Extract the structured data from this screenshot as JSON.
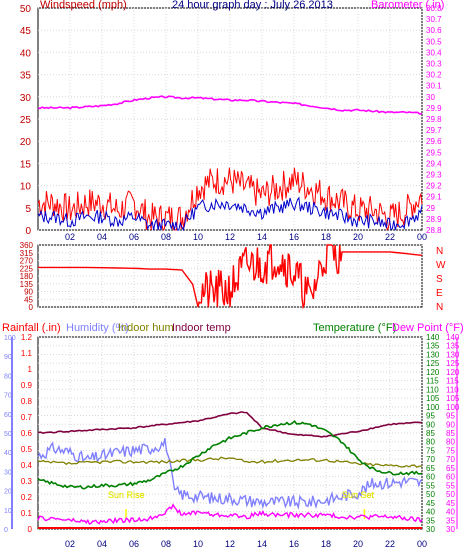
{
  "header": {
    "title": "24 hour graph day : July 26 2013",
    "wind_label": "Windspeed (mph)",
    "baro_label": "Barometer (.in)"
  },
  "bottom_header": {
    "rain_label": "Rainfall (.in)",
    "humidity_label": "Humidity (%)",
    "indoor_hum_label": "Indoor hum",
    "indoor_temp_label": "Indoor temp",
    "temp_label": "Temperature (°F)",
    "dew_label": "Dew Point (°F)"
  },
  "annotations": {
    "sunrise": "Sun Rise",
    "sunset": "Sun Set"
  },
  "colors": {
    "wind": "#ff0000",
    "wind_avg": "#0000cc",
    "baro": "#ff00ff",
    "direction": "#ff0000",
    "humidity": "#8080ff",
    "indoor_hum": "#808000",
    "indoor_temp": "#800040",
    "temperature": "#008000",
    "dewpoint": "#ff00ff",
    "rain": "#ff0000",
    "sun_text": "#ffff00"
  },
  "chart_data": [
    {
      "type": "line",
      "name": "wind-barometer",
      "title": "24 hour graph day : July 26 2013",
      "x_ticks": [
        "02",
        "04",
        "06",
        "08",
        "10",
        "12",
        "14",
        "16",
        "18",
        "20",
        "22",
        "00"
      ],
      "xlim": [
        0,
        24
      ],
      "y_left": {
        "label": "Windspeed (mph)",
        "ylim": [
          0,
          50
        ],
        "ticks": [
          0,
          5,
          10,
          15,
          20,
          25,
          30,
          35,
          40,
          45,
          50
        ]
      },
      "y_right": {
        "label": "Barometer (.in)",
        "ylim": [
          28.8,
          30.8
        ],
        "ticks": [
          "28.8",
          "28.9",
          "29",
          "29.1",
          "29.2",
          "29.3",
          "29.4",
          "29.5",
          "29.6",
          "29.7",
          "29.8",
          "29.9",
          "30",
          "30.1",
          "30.2",
          "30.3",
          "30.4",
          "30.5",
          "30.6",
          "30.7",
          "30.8"
        ]
      },
      "series": [
        {
          "name": "Windspeed (mph)",
          "x": [
            0,
            1,
            2,
            3,
            4,
            5,
            6,
            7,
            8,
            9,
            10,
            11,
            12,
            13,
            14,
            15,
            16,
            17,
            18,
            19,
            20,
            21,
            22,
            23,
            24
          ],
          "values": [
            3,
            3,
            2,
            3,
            3,
            2,
            3,
            1,
            1,
            1,
            5,
            6,
            6,
            5,
            4,
            5,
            6,
            5,
            4,
            3,
            2,
            2,
            1,
            2,
            4
          ]
        },
        {
          "name": "Barometer (.in)",
          "x": [
            0,
            1,
            2,
            3,
            4,
            5,
            6,
            7,
            8,
            9,
            10,
            11,
            12,
            13,
            14,
            15,
            16,
            17,
            18,
            19,
            20,
            21,
            22,
            23,
            24
          ],
          "values": [
            29.9,
            29.9,
            29.9,
            29.91,
            29.92,
            29.94,
            29.97,
            29.99,
            30.0,
            29.99,
            29.99,
            29.98,
            29.97,
            29.97,
            29.96,
            29.95,
            29.94,
            29.92,
            29.9,
            29.88,
            29.88,
            29.87,
            29.86,
            29.86,
            29.85
          ]
        }
      ]
    },
    {
      "type": "line",
      "name": "wind-direction",
      "x_ticks": [
        "02",
        "04",
        "06",
        "08",
        "10",
        "12",
        "14",
        "16",
        "18",
        "20",
        "22",
        "00"
      ],
      "xlim": [
        0,
        24
      ],
      "y_left": {
        "ylim": [
          0,
          360
        ],
        "ticks": [
          0,
          45,
          90,
          135,
          180,
          225,
          270,
          315,
          360
        ]
      },
      "y_right": {
        "ticks": [
          "N",
          "W",
          "S",
          "E",
          "N"
        ]
      },
      "series": [
        {
          "name": "Wind direction",
          "x": [
            0,
            3,
            6,
            7,
            8,
            9,
            10,
            11,
            12,
            13,
            14,
            15,
            16,
            17,
            18,
            19,
            20,
            21,
            22,
            23,
            24
          ],
          "values": [
            230,
            230,
            225,
            220,
            220,
            215,
            90,
            80,
            100,
            240,
            250,
            300,
            200,
            40,
            320,
            320,
            320,
            320,
            320,
            310,
            300
          ]
        }
      ]
    },
    {
      "type": "line",
      "name": "temperature-humidity-rain",
      "x_ticks": [
        "02",
        "04",
        "06",
        "08",
        "10",
        "12",
        "14",
        "16",
        "18",
        "20",
        "22",
        "00"
      ],
      "xlim": [
        0,
        24
      ],
      "y_rain": {
        "label": "Rainfall (.in)",
        "ylim": [
          0,
          1.2
        ],
        "ticks": [
          "0",
          "0.1",
          "0.2",
          "0.3",
          "0.4",
          "0.5",
          "0.6",
          "0.7",
          "0.8",
          "0.9",
          "1",
          "1.1",
          "1.2"
        ]
      },
      "y_humidity": {
        "label": "Humidity (%)",
        "ylim": [
          0,
          100
        ],
        "ticks": [
          "0",
          "10",
          "20",
          "30",
          "40",
          "50",
          "60",
          "70",
          "80",
          "90",
          "100"
        ]
      },
      "y_temp": {
        "label": "Temperature (°F)",
        "ylim": [
          30,
          140
        ],
        "ticks": [
          "30",
          "35",
          "40",
          "45",
          "50",
          "55",
          "60",
          "65",
          "70",
          "75",
          "80",
          "85",
          "90",
          "95",
          "100",
          "105",
          "110",
          "115",
          "120",
          "125",
          "130",
          "135",
          "140"
        ]
      },
      "series": [
        {
          "name": "Humidity (%)",
          "x": [
            0,
            1,
            2,
            3,
            4,
            5,
            6,
            7,
            8,
            8.5,
            9,
            10,
            11,
            12,
            13,
            14,
            15,
            16,
            17,
            18,
            19,
            20,
            21,
            22,
            23,
            24
          ],
          "values": [
            38,
            42,
            40,
            36,
            38,
            40,
            41,
            42,
            45,
            20,
            18,
            17,
            16,
            16,
            15,
            14,
            14,
            14,
            14,
            15,
            17,
            19,
            24,
            24,
            25,
            24
          ]
        },
        {
          "name": "Indoor hum",
          "x": [
            0,
            2,
            4,
            6,
            8,
            10,
            12,
            13,
            14,
            16,
            18,
            20,
            22,
            24
          ],
          "values": [
            35,
            34,
            35,
            35,
            35,
            36,
            37,
            35,
            35,
            36,
            36,
            34,
            33,
            33
          ]
        },
        {
          "name": "Indoor temp",
          "x": [
            0,
            2,
            4,
            6,
            8,
            10,
            12,
            13,
            14,
            16,
            18,
            20,
            22,
            24
          ],
          "values": [
            85,
            86,
            87,
            88,
            90,
            92,
            96,
            97,
            88,
            84,
            83,
            86,
            90,
            91
          ]
        },
        {
          "name": "Temperature (°F)",
          "x": [
            0,
            1,
            2,
            3,
            4,
            5,
            6,
            7,
            8,
            9,
            10,
            11,
            12,
            13,
            14,
            15,
            16,
            17,
            18,
            19,
            20,
            21,
            22,
            23,
            24
          ],
          "values": [
            58,
            56,
            54,
            54,
            55,
            55,
            56,
            58,
            62,
            66,
            72,
            78,
            82,
            85,
            88,
            90,
            91,
            90,
            86,
            80,
            70,
            64,
            62,
            62,
            62
          ]
        },
        {
          "name": "Dew Point (°F)",
          "x": [
            0,
            1,
            2,
            3,
            4,
            5,
            6,
            7,
            8,
            8.5,
            9,
            10,
            11,
            12,
            13,
            14,
            15,
            16,
            17,
            18,
            19,
            20,
            21,
            22,
            23,
            24
          ],
          "values": [
            36,
            36,
            35,
            34,
            34,
            35,
            35,
            36,
            40,
            43,
            38,
            40,
            38,
            38,
            37,
            39,
            38,
            38,
            38,
            38,
            37,
            37,
            37,
            37,
            36,
            35
          ]
        }
      ]
    }
  ]
}
